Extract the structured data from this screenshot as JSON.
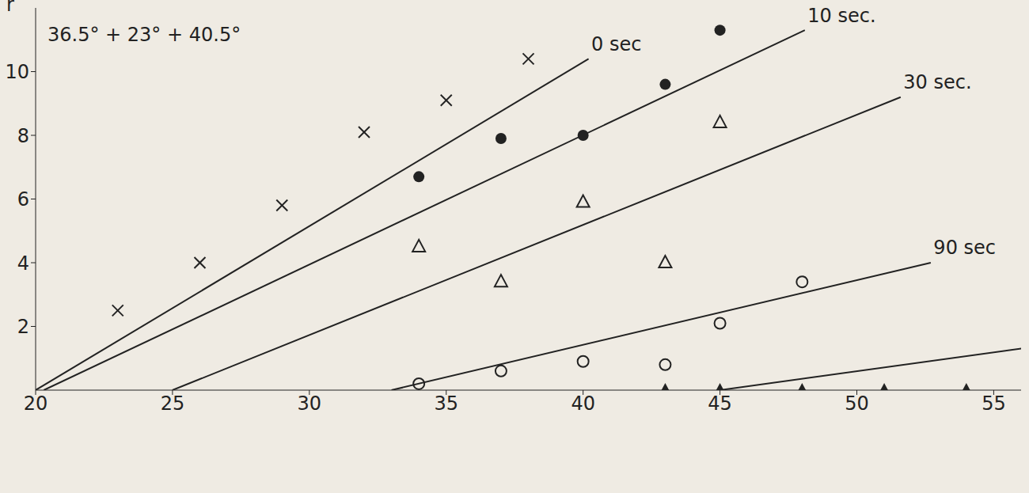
{
  "chart_data": {
    "type": "scatter",
    "title": "36.5° + 23° + 40.5°",
    "y_label": "r",
    "xlim": [
      20,
      56
    ],
    "xticks": [
      20,
      25,
      30,
      35,
      40,
      45,
      50,
      55
    ],
    "ylim": [
      0,
      12
    ],
    "yticks": [
      2,
      4,
      6,
      8,
      10
    ],
    "color": "#222222",
    "series": [
      {
        "name": "0 sec",
        "marker": "x",
        "x": [
          23,
          26,
          29,
          32,
          35,
          38
        ],
        "y": [
          2.5,
          4.0,
          5.8,
          8.1,
          9.1,
          10.4
        ],
        "fit_x": [
          20,
          40.2
        ],
        "fit_y": [
          0,
          10.4
        ]
      },
      {
        "name": "10 sec.",
        "marker": "filled_circle",
        "x": [
          34,
          37,
          40,
          43,
          45
        ],
        "y": [
          6.7,
          7.9,
          8.0,
          9.6,
          11.3
        ],
        "fit_x": [
          20.3,
          48.1
        ],
        "fit_y": [
          0,
          11.3
        ]
      },
      {
        "name": "30 sec.",
        "marker": "triangle",
        "x": [
          34,
          37,
          40,
          43,
          45
        ],
        "y": [
          4.5,
          3.4,
          5.9,
          4.0,
          8.4
        ],
        "fit_x": [
          25,
          51.6
        ],
        "fit_y": [
          0,
          9.2
        ]
      },
      {
        "name": "90 sec",
        "marker": "circle",
        "x": [
          34,
          37,
          40,
          43,
          45,
          48
        ],
        "y": [
          0.2,
          0.6,
          0.9,
          0.8,
          2.1,
          3.4
        ],
        "fit_x": [
          33,
          52.7
        ],
        "fit_y": [
          0,
          4.0
        ]
      },
      {
        "marker": "filled_triangle",
        "x": [
          43,
          45,
          48,
          51,
          54
        ],
        "y": [
          0,
          0,
          0,
          0,
          0
        ],
        "fit_x": [
          45,
          56.2
        ],
        "fit_y": [
          0,
          1.33
        ]
      }
    ]
  }
}
